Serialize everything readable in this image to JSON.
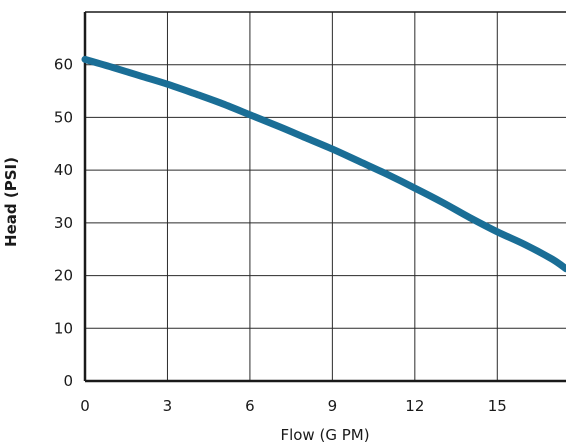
{
  "chart_data": {
    "type": "line",
    "xlabel": "Flow (G PM)",
    "ylabel": "Head (PSI)",
    "xlim": [
      0,
      17.5
    ],
    "ylim": [
      0,
      70
    ],
    "x_ticks": [
      0,
      3,
      6,
      9,
      12,
      15
    ],
    "y_ticks": [
      0,
      10,
      20,
      30,
      40,
      50,
      60
    ],
    "grid": true,
    "series_color": "#1a6e96",
    "series": [
      {
        "x": [
          0,
          1,
          2,
          3,
          4,
          5,
          6,
          7,
          8,
          9,
          10,
          11,
          12,
          13,
          14,
          15,
          16,
          17,
          17.5
        ],
        "values": [
          61,
          59.5,
          57.9,
          56.3,
          54.5,
          52.6,
          50.5,
          48.4,
          46.2,
          44,
          41.6,
          39.2,
          36.6,
          33.9,
          31,
          28.3,
          25.9,
          23.1,
          21.3
        ]
      }
    ]
  }
}
